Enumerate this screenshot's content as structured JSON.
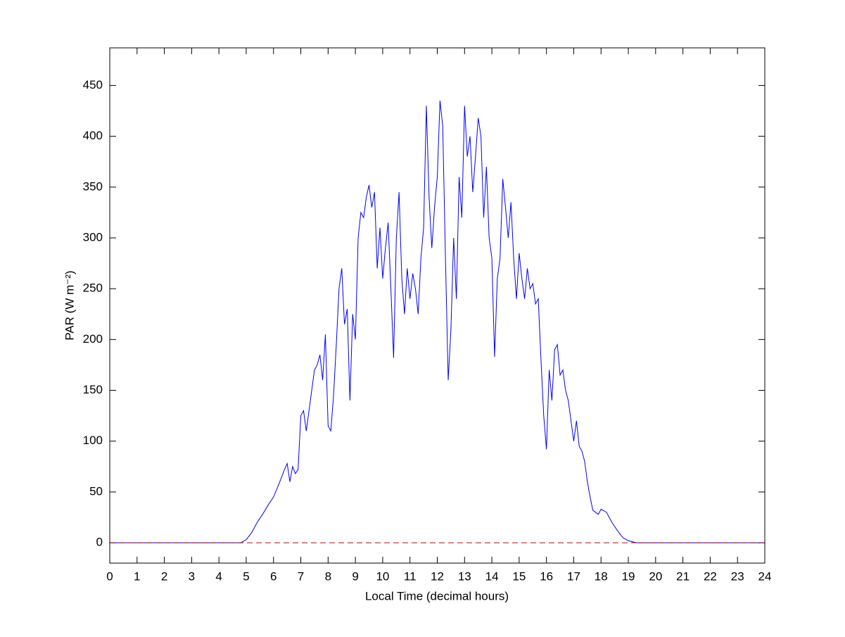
{
  "chart_data": {
    "type": "line",
    "xlabel": "Local Time (decimal hours)",
    "ylabel": "PAR (W m⁻²)",
    "xlim": [
      0,
      24
    ],
    "ylim": [
      -20,
      487
    ],
    "xticks": [
      0,
      1,
      2,
      3,
      4,
      5,
      6,
      7,
      8,
      9,
      10,
      11,
      12,
      13,
      14,
      15,
      16,
      17,
      18,
      19,
      20,
      21,
      22,
      23,
      24
    ],
    "yticks": [
      0,
      50,
      100,
      150,
      200,
      250,
      300,
      350,
      400,
      450
    ],
    "grid": false,
    "series": [
      {
        "color": "#0000ff",
        "linestyle": "solid",
        "x": [
          0,
          4.8,
          5.0,
          5.2,
          5.4,
          5.6,
          5.8,
          6.0,
          6.2,
          6.4,
          6.5,
          6.6,
          6.7,
          6.8,
          6.9,
          7.0,
          7.1,
          7.2,
          7.3,
          7.4,
          7.5,
          7.6,
          7.7,
          7.8,
          7.9,
          8.0,
          8.1,
          8.2,
          8.3,
          8.4,
          8.5,
          8.6,
          8.7,
          8.8,
          8.9,
          9.0,
          9.1,
          9.2,
          9.3,
          9.4,
          9.5,
          9.6,
          9.7,
          9.8,
          9.9,
          10.0,
          10.1,
          10.2,
          10.3,
          10.4,
          10.5,
          10.6,
          10.7,
          10.8,
          10.9,
          11.0,
          11.1,
          11.2,
          11.3,
          11.4,
          11.5,
          11.6,
          11.7,
          11.8,
          11.9,
          12.0,
          12.1,
          12.2,
          12.3,
          12.4,
          12.5,
          12.6,
          12.7,
          12.8,
          12.9,
          13.0,
          13.1,
          13.2,
          13.3,
          13.4,
          13.5,
          13.6,
          13.7,
          13.8,
          13.9,
          14.0,
          14.1,
          14.2,
          14.3,
          14.4,
          14.5,
          14.6,
          14.7,
          14.8,
          14.9,
          15.0,
          15.1,
          15.2,
          15.3,
          15.4,
          15.5,
          15.6,
          15.7,
          15.8,
          15.9,
          16.0,
          16.1,
          16.2,
          16.3,
          16.4,
          16.5,
          16.6,
          16.7,
          16.8,
          16.9,
          17.0,
          17.1,
          17.2,
          17.3,
          17.4,
          17.5,
          17.6,
          17.7,
          17.8,
          17.9,
          18.0,
          18.2,
          18.4,
          18.6,
          18.8,
          19.0,
          19.3,
          24
        ],
        "values": [
          0,
          0,
          3,
          10,
          20,
          28,
          37,
          45,
          58,
          72,
          78,
          60,
          75,
          68,
          72,
          125,
          130,
          110,
          130,
          150,
          170,
          175,
          185,
          160,
          205,
          115,
          110,
          145,
          195,
          250,
          270,
          215,
          230,
          140,
          225,
          200,
          300,
          325,
          320,
          340,
          352,
          330,
          345,
          270,
          310,
          260,
          290,
          315,
          250,
          182,
          300,
          345,
          260,
          225,
          270,
          240,
          265,
          250,
          225,
          280,
          310,
          430,
          340,
          290,
          330,
          360,
          435,
          410,
          280,
          160,
          210,
          300,
          240,
          360,
          320,
          430,
          380,
          400,
          345,
          380,
          418,
          400,
          320,
          370,
          300,
          280,
          183,
          260,
          280,
          358,
          330,
          300,
          335,
          280,
          240,
          285,
          260,
          240,
          270,
          250,
          255,
          235,
          240,
          180,
          125,
          92,
          170,
          140,
          190,
          195,
          165,
          170,
          150,
          140,
          120,
          100,
          120,
          95,
          90,
          80,
          60,
          45,
          32,
          30,
          28,
          33,
          30,
          20,
          12,
          5,
          2,
          0,
          0
        ]
      },
      {
        "color": "#cc0000",
        "linestyle": "dashed",
        "x": [
          0,
          24
        ],
        "values": [
          0,
          0
        ]
      }
    ]
  }
}
